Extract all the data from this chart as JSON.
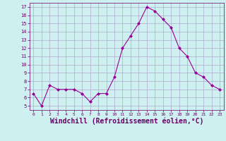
{
  "x": [
    0,
    1,
    2,
    3,
    4,
    5,
    6,
    7,
    8,
    9,
    10,
    11,
    12,
    13,
    14,
    15,
    16,
    17,
    18,
    19,
    20,
    21,
    22,
    23
  ],
  "y": [
    6.5,
    5.0,
    7.5,
    7.0,
    7.0,
    7.0,
    6.5,
    5.5,
    6.5,
    6.5,
    8.5,
    12.0,
    13.5,
    15.0,
    17.0,
    16.5,
    15.5,
    14.5,
    12.0,
    11.0,
    9.0,
    8.5,
    7.5,
    7.0
  ],
  "line_color": "#990099",
  "marker": "D",
  "marker_size": 2,
  "xlabel": "Windchill (Refroidissement éolien,°C)",
  "xlabel_fontsize": 7,
  "xlabel_color": "#660066",
  "bg_color": "#cff0f0",
  "grid_color": "#aaaacc",
  "tick_color": "#660066",
  "ylim": [
    4.5,
    17.5
  ],
  "yticks": [
    5,
    6,
    7,
    8,
    9,
    10,
    11,
    12,
    13,
    14,
    15,
    16,
    17
  ],
  "xlim": [
    -0.5,
    23.5
  ],
  "xticks": [
    0,
    1,
    2,
    3,
    4,
    5,
    6,
    7,
    8,
    9,
    10,
    11,
    12,
    13,
    14,
    15,
    16,
    17,
    18,
    19,
    20,
    21,
    22,
    23
  ]
}
